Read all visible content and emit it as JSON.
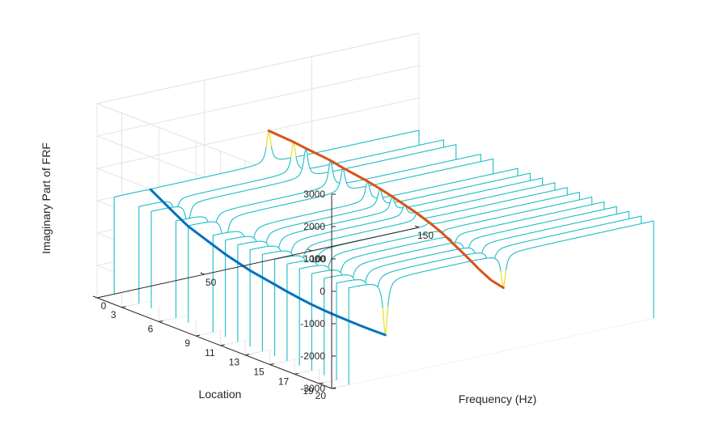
{
  "chart_data": {
    "type": "line",
    "subtype": "3d-waterfall",
    "title": "",
    "xlabel": "Frequency (Hz)",
    "ylabel": "Location",
    "zlabel": "Imaginary Part of FRF",
    "xlim": [
      0,
      150
    ],
    "ylim": [
      1,
      20
    ],
    "zlim": [
      -3000,
      3000
    ],
    "x_ticks": [
      0,
      50,
      100,
      150
    ],
    "y_ticks": [
      3,
      6,
      9,
      11,
      13,
      15,
      17,
      19,
      20
    ],
    "z_ticks": [
      -3000,
      -2000,
      -1000,
      0,
      1000,
      2000,
      3000
    ],
    "grid": true,
    "locations": [
      1,
      3,
      4,
      6,
      7,
      9,
      10,
      11,
      12,
      13,
      14,
      15,
      16,
      17,
      18,
      19,
      20
    ],
    "resonance_frequencies_hz": [
      25,
      80
    ],
    "mode_shapes": [
      {
        "frequency": 25,
        "color": "#0072BD",
        "values": [
          -20,
          -480,
          -700,
          -980,
          -1120,
          -1330,
          -1400,
          -1470,
          -1540,
          -1600,
          -1650,
          -1680,
          -1700,
          -1710,
          -1720,
          -1720,
          -1710
        ]
      },
      {
        "frequency": 80,
        "color": "#D95319",
        "values": [
          1000,
          950,
          900,
          820,
          740,
          620,
          540,
          440,
          330,
          220,
          80,
          -80,
          -300,
          -520,
          -760,
          -960,
          -1050
        ]
      }
    ],
    "colors": {
      "trace": "#1CBCC8",
      "peak": "#F0E641",
      "axes": "#262626",
      "grid": "#e4e4e4"
    }
  }
}
